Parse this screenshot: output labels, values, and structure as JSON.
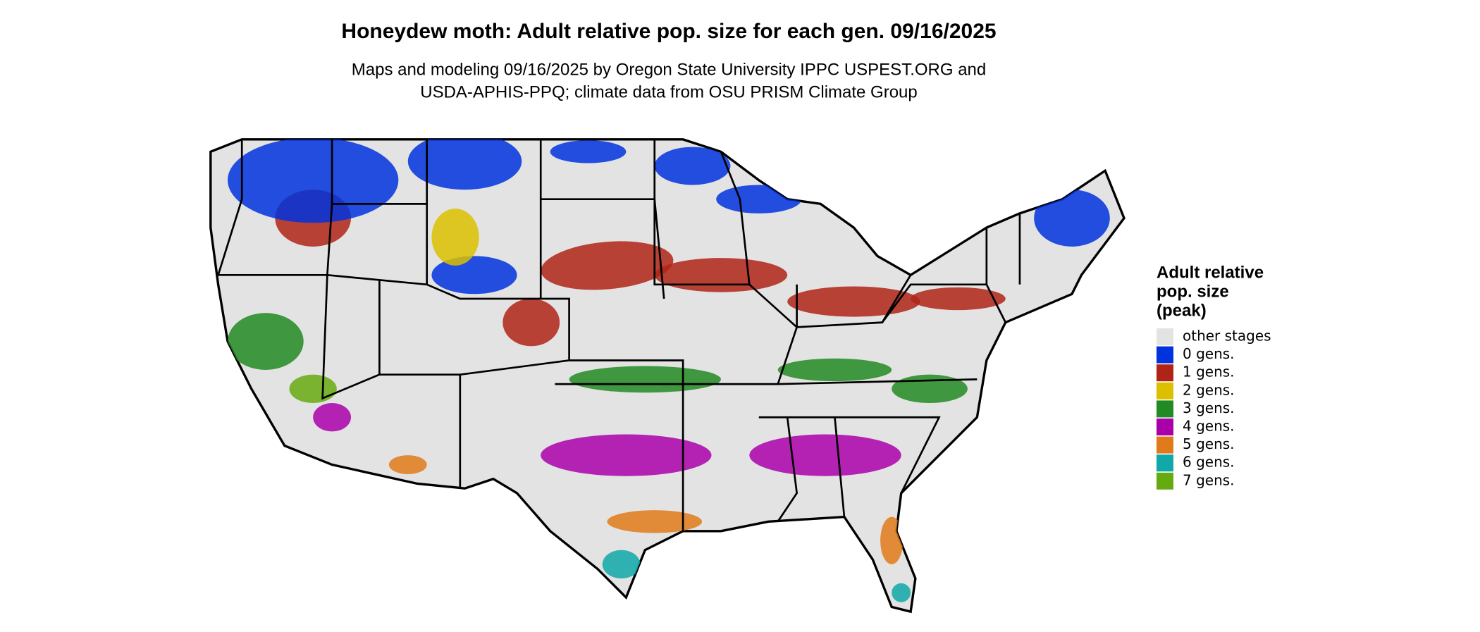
{
  "title": "Honeydew moth: Adult relative pop. size for each gen. 09/16/2025",
  "subtitle": [
    "Maps and modeling 09/16/2025 by Oregon State University IPPC USPEST.ORG and",
    "USDA-APHIS-PPQ; climate data from OSU PRISM Climate Group"
  ],
  "legend": {
    "title": [
      "Adult relative",
      "pop. size",
      "(peak)"
    ],
    "items": [
      {
        "label": "other stages",
        "color": "#e3e3e3"
      },
      {
        "label": "0 gens.",
        "color": "#0033dd"
      },
      {
        "label": "1 gens.",
        "color": "#b02418"
      },
      {
        "label": "2 gens.",
        "color": "#dcc000"
      },
      {
        "label": "3 gens.",
        "color": "#228a22"
      },
      {
        "label": "4 gens.",
        "color": "#aa00aa"
      },
      {
        "label": "5 gens.",
        "color": "#e07a1a"
      },
      {
        "label": "6 gens.",
        "color": "#10a8a8"
      },
      {
        "label": "7 gens.",
        "color": "#66aa11"
      }
    ]
  }
}
